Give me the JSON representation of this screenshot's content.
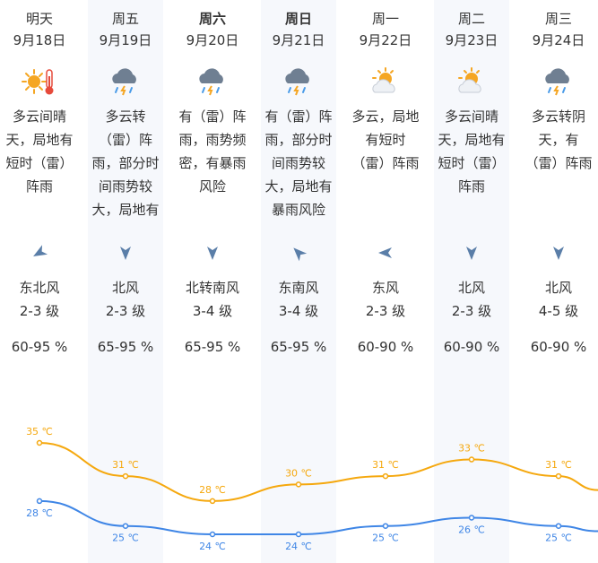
{
  "colors": {
    "high": "#f5a80e",
    "low": "#3f86e6",
    "arrow": "#5a7ea8",
    "cloud": "#6f7f92",
    "sun": "#f5a623",
    "shade": "#f6f8fc"
  },
  "days": [
    {
      "day": "明天",
      "date": "9月18日",
      "icon": "sunny-thermometer-icon",
      "desc": "多云间晴天，局地有短时（雷）阵雨",
      "wind_icon": "wind-arrow-icon",
      "wind_dir": "东北风",
      "wind_level": "2-3 级",
      "humidity": "60-95 %",
      "high": "35 ℃",
      "low": "28 ℃"
    },
    {
      "day": "周五",
      "date": "9月19日",
      "icon": "thunder-rain-icon",
      "desc": "多云转（雷）阵雨，部分时间雨势较大，局地有暴雨风险",
      "wind_icon": "wind-arrow-icon",
      "wind_dir": "北风",
      "wind_level": "2-3 级",
      "humidity": "65-95 %",
      "high": "31 ℃",
      "low": "25 ℃"
    },
    {
      "day": "周六",
      "date": "9月20日",
      "icon": "thunder-rain-icon",
      "desc": "有（雷）阵雨，雨势频密，有暴雨风险",
      "wind_icon": "wind-arrow-icon",
      "wind_dir": "北转南风",
      "wind_level": "3-4 级",
      "humidity": "65-95 %",
      "high": "28 ℃",
      "low": "24 ℃"
    },
    {
      "day": "周日",
      "date": "9月21日",
      "icon": "thunder-rain-icon",
      "desc": "有（雷）阵雨，部分时间雨势较大，局地有暴雨风险",
      "wind_icon": "wind-arrow-icon",
      "wind_dir": "东南风",
      "wind_level": "3-4 级",
      "humidity": "65-95 %",
      "high": "30 ℃",
      "low": "24 ℃"
    },
    {
      "day": "周一",
      "date": "9月22日",
      "icon": "partly-cloudy-icon",
      "desc": "多云，局地有短时（雷）阵雨",
      "wind_icon": "wind-arrow-icon",
      "wind_dir": "东风",
      "wind_level": "2-3 级",
      "humidity": "60-90 %",
      "high": "31 ℃",
      "low": "25 ℃"
    },
    {
      "day": "周二",
      "date": "9月23日",
      "icon": "partly-cloudy-icon",
      "desc": "多云间晴天，局地有短时（雷）阵雨",
      "wind_icon": "wind-arrow-icon",
      "wind_dir": "北风",
      "wind_level": "2-3 级",
      "humidity": "60-90 %",
      "high": "33 ℃",
      "low": "26 ℃"
    },
    {
      "day": "周三",
      "date": "9月24日",
      "icon": "thunder-rain-icon",
      "desc": "多云转阴天，有（雷）阵雨",
      "wind_icon": "wind-arrow-icon",
      "wind_dir": "北风",
      "wind_level": "4-5 级",
      "humidity": "60-90 %",
      "high": "31 ℃",
      "low": "25 ℃"
    }
  ],
  "chart_data": {
    "type": "line",
    "categories": [
      "9月18日",
      "9月19日",
      "9月20日",
      "9月21日",
      "9月22日",
      "9月23日",
      "9月24日"
    ],
    "series": [
      {
        "values": [
          35,
          31,
          28,
          30,
          31,
          33,
          31
        ]
      },
      {
        "values": [
          28,
          25,
          24,
          24,
          25,
          26,
          25
        ]
      }
    ],
    "unit": "℃"
  }
}
